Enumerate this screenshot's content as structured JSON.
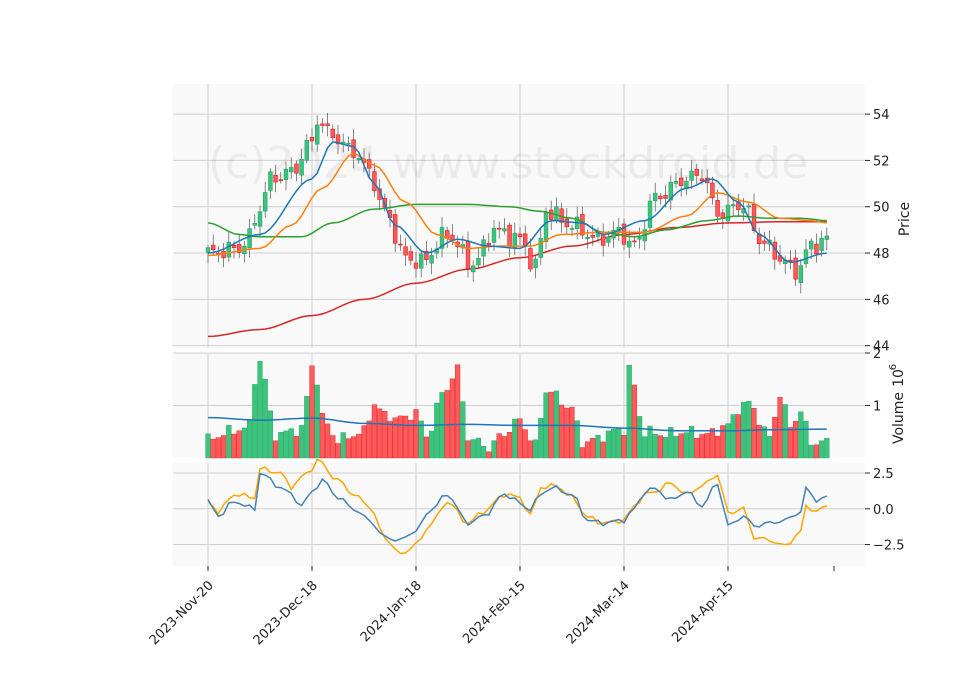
{
  "chart_data": {
    "type": "candlestick",
    "watermark": "(c)2024 www.stockdroid.de",
    "price_panel": {
      "ylabel": "Price",
      "ylim": [
        43.9,
        55.3
      ],
      "yticks": [
        "44",
        "46",
        "48",
        "50",
        "52",
        "54"
      ],
      "yticks_values": [
        44,
        46,
        48,
        50,
        52,
        54
      ]
    },
    "volume_panel": {
      "ylabel": "Volume",
      "exponent_label": "10",
      "exponent_power": "6",
      "ylim": [
        0,
        2.0
      ],
      "yticks": [
        "1",
        "2"
      ],
      "yticks_values": [
        1,
        2
      ]
    },
    "indicator_panel": {
      "ylim": [
        -4.0,
        3.2
      ],
      "yticks": [
        "2.5",
        "0.0",
        "−2.5"
      ],
      "yticks_values": [
        2.5,
        0.0,
        -2.5
      ]
    },
    "x_ticks": [
      "2023-Nov-20",
      "2023-Dec-18",
      "2024-Jan-18",
      "2024-Feb-15",
      "2024-Mar-14",
      "2024-Apr-15"
    ],
    "x_tick_index": [
      0,
      20,
      40,
      60,
      80,
      100
    ],
    "n_sessions": 120,
    "colors": {
      "up": "#26a269",
      "up_fill": "#3cc47c",
      "down": "#e01b24",
      "down_fill": "#ff5a5a",
      "ma_fast": "#1f77b4",
      "ma_mid": "#ff7f0e",
      "ma_slow": "#2ca02c",
      "ma_long": "#d62728",
      "vol_ma": "#1f77b4",
      "ind_a": "#4682b4",
      "ind_b": "#ffa500"
    },
    "close_anchors": [
      [
        0,
        48.0
      ],
      [
        6,
        48.2
      ],
      [
        8,
        48.7
      ],
      [
        10,
        50.0
      ],
      [
        12,
        51.2
      ],
      [
        16,
        51.5
      ],
      [
        20,
        52.8
      ],
      [
        21,
        53.8
      ],
      [
        23,
        53.2
      ],
      [
        28,
        52.4
      ],
      [
        31,
        51.5
      ],
      [
        34,
        49.8
      ],
      [
        38,
        47.8
      ],
      [
        41,
        47.6
      ],
      [
        46,
        48.8
      ],
      [
        51,
        47.5
      ],
      [
        55,
        49.0
      ],
      [
        60,
        48.6
      ],
      [
        63,
        47.4
      ],
      [
        65,
        49.8
      ],
      [
        70,
        49.2
      ],
      [
        75,
        48.6
      ],
      [
        79,
        48.9
      ],
      [
        82,
        48.3
      ],
      [
        86,
        50.4
      ],
      [
        92,
        51.2
      ],
      [
        95,
        51.4
      ],
      [
        98,
        49.7
      ],
      [
        103,
        50.1
      ],
      [
        106,
        48.6
      ],
      [
        110,
        47.8
      ],
      [
        113,
        47.2
      ],
      [
        116,
        48.3
      ],
      [
        119,
        48.6
      ]
    ],
    "ma_anchors": {
      "fast": [
        [
          0,
          48.0
        ],
        [
          10,
          48.8
        ],
        [
          20,
          51.2
        ],
        [
          24,
          52.8
        ],
        [
          28,
          52.6
        ],
        [
          32,
          51.0
        ],
        [
          36,
          49.2
        ],
        [
          42,
          48.0
        ],
        [
          48,
          48.6
        ],
        [
          54,
          48.3
        ],
        [
          60,
          48.2
        ],
        [
          66,
          49.4
        ],
        [
          72,
          49.3
        ],
        [
          76,
          48.8
        ],
        [
          84,
          49.4
        ],
        [
          92,
          50.8
        ],
        [
          97,
          51.2
        ],
        [
          102,
          50.2
        ],
        [
          106,
          48.8
        ],
        [
          112,
          47.6
        ],
        [
          119,
          48.0
        ]
      ],
      "mid": [
        [
          0,
          47.9
        ],
        [
          10,
          48.2
        ],
        [
          16,
          49.2
        ],
        [
          22,
          50.8
        ],
        [
          28,
          52.3
        ],
        [
          32,
          51.8
        ],
        [
          38,
          50.2
        ],
        [
          44,
          48.8
        ],
        [
          50,
          48.2
        ],
        [
          56,
          48.3
        ],
        [
          62,
          48.3
        ],
        [
          68,
          48.8
        ],
        [
          76,
          48.9
        ],
        [
          84,
          48.9
        ],
        [
          92,
          49.6
        ],
        [
          98,
          50.6
        ],
        [
          104,
          50.2
        ],
        [
          110,
          49.5
        ],
        [
          116,
          49.4
        ],
        [
          119,
          49.3
        ]
      ],
      "slow": [
        [
          0,
          49.3
        ],
        [
          6,
          48.8
        ],
        [
          10,
          48.7
        ],
        [
          18,
          48.7
        ],
        [
          24,
          49.3
        ],
        [
          32,
          49.9
        ],
        [
          40,
          50.1
        ],
        [
          50,
          50.1
        ],
        [
          58,
          50.0
        ],
        [
          64,
          49.8
        ],
        [
          70,
          49.5
        ],
        [
          76,
          48.9
        ],
        [
          82,
          48.7
        ],
        [
          88,
          49.0
        ],
        [
          96,
          49.4
        ],
        [
          102,
          49.6
        ],
        [
          108,
          49.5
        ],
        [
          114,
          49.5
        ],
        [
          119,
          49.4
        ]
      ],
      "long": [
        [
          0,
          44.4
        ],
        [
          10,
          44.7
        ],
        [
          20,
          45.3
        ],
        [
          30,
          46.0
        ],
        [
          40,
          46.7
        ],
        [
          50,
          47.3
        ],
        [
          60,
          47.8
        ],
        [
          70,
          48.3
        ],
        [
          80,
          48.8
        ],
        [
          90,
          49.1
        ],
        [
          100,
          49.3
        ],
        [
          110,
          49.35
        ],
        [
          119,
          49.35
        ]
      ]
    },
    "volume_anchors": [
      [
        0,
        0.35
      ],
      [
        4,
        0.5
      ],
      [
        8,
        0.6
      ],
      [
        9,
        1.5
      ],
      [
        10,
        1.85
      ],
      [
        13,
        0.45
      ],
      [
        18,
        0.55
      ],
      [
        20,
        1.75
      ],
      [
        21,
        1.5
      ],
      [
        22,
        0.75
      ],
      [
        25,
        0.35
      ],
      [
        30,
        0.5
      ],
      [
        32,
        1.05
      ],
      [
        34,
        0.8
      ],
      [
        38,
        0.75
      ],
      [
        40,
        0.9
      ],
      [
        42,
        0.4
      ],
      [
        45,
        1.2
      ],
      [
        48,
        1.7
      ],
      [
        50,
        0.4
      ],
      [
        54,
        0.2
      ],
      [
        56,
        0.4
      ],
      [
        60,
        0.72
      ],
      [
        63,
        0.25
      ],
      [
        65,
        1.3
      ],
      [
        70,
        0.95
      ],
      [
        72,
        0.3
      ],
      [
        80,
        0.55
      ],
      [
        81,
        1.68
      ],
      [
        84,
        0.5
      ],
      [
        88,
        0.45
      ],
      [
        92,
        0.5
      ],
      [
        96,
        0.45
      ],
      [
        100,
        0.62
      ],
      [
        102,
        0.95
      ],
      [
        104,
        1.05
      ],
      [
        108,
        0.4
      ],
      [
        110,
        1.22
      ],
      [
        112,
        0.6
      ],
      [
        114,
        0.9
      ],
      [
        116,
        0.3
      ],
      [
        119,
        0.3
      ]
    ],
    "volume_ma_anchors": [
      [
        0,
        0.77
      ],
      [
        10,
        0.72
      ],
      [
        20,
        0.76
      ],
      [
        30,
        0.66
      ],
      [
        40,
        0.62
      ],
      [
        50,
        0.64
      ],
      [
        60,
        0.62
      ],
      [
        70,
        0.62
      ],
      [
        80,
        0.57
      ],
      [
        90,
        0.52
      ],
      [
        100,
        0.52
      ],
      [
        110,
        0.54
      ],
      [
        119,
        0.55
      ]
    ],
    "indicator_a_anchors": [
      [
        0,
        0.5
      ],
      [
        2,
        -0.5
      ],
      [
        5,
        0.5
      ],
      [
        9,
        0.0
      ],
      [
        10,
        2.5
      ],
      [
        14,
        1.5
      ],
      [
        16,
        1.0
      ],
      [
        18,
        0.2
      ],
      [
        20,
        1.2
      ],
      [
        22,
        2.0
      ],
      [
        25,
        0.8
      ],
      [
        28,
        0.0
      ],
      [
        31,
        -0.8
      ],
      [
        34,
        -2.0
      ],
      [
        37,
        -2.2
      ],
      [
        40,
        -1.5
      ],
      [
        43,
        0.0
      ],
      [
        46,
        1.0
      ],
      [
        50,
        -1.0
      ],
      [
        53,
        -0.5
      ],
      [
        57,
        1.0
      ],
      [
        62,
        0.0
      ],
      [
        64,
        1.0
      ],
      [
        66,
        1.5
      ],
      [
        70,
        1.0
      ],
      [
        73,
        -0.8
      ],
      [
        76,
        -1.0
      ],
      [
        80,
        -0.8
      ],
      [
        82,
        0.0
      ],
      [
        84,
        1.2
      ],
      [
        86,
        1.4
      ],
      [
        89,
        0.6
      ],
      [
        92,
        1.2
      ],
      [
        95,
        0.2
      ],
      [
        98,
        1.8
      ],
      [
        100,
        -1.2
      ],
      [
        103,
        -0.5
      ],
      [
        105,
        -1.2
      ],
      [
        108,
        -1.0
      ],
      [
        111,
        -0.8
      ],
      [
        114,
        -0.2
      ],
      [
        115,
        1.4
      ],
      [
        117,
        0.6
      ],
      [
        119,
        0.8
      ]
    ],
    "indicator_b_anchors": [
      [
        0,
        0.5
      ],
      [
        2,
        -0.2
      ],
      [
        5,
        1.0
      ],
      [
        9,
        0.8
      ],
      [
        10,
        2.8
      ],
      [
        14,
        2.5
      ],
      [
        16,
        1.5
      ],
      [
        18,
        2.2
      ],
      [
        20,
        2.8
      ],
      [
        21,
        3.4
      ],
      [
        25,
        2.0
      ],
      [
        28,
        1.0
      ],
      [
        31,
        0.2
      ],
      [
        34,
        -2.0
      ],
      [
        37,
        -3.2
      ],
      [
        40,
        -2.5
      ],
      [
        43,
        -1.0
      ],
      [
        46,
        0.5
      ],
      [
        50,
        -1.0
      ],
      [
        53,
        -0.2
      ],
      [
        57,
        1.0
      ],
      [
        60,
        0.8
      ],
      [
        62,
        -0.5
      ],
      [
        64,
        1.5
      ],
      [
        67,
        1.6
      ],
      [
        70,
        0.8
      ],
      [
        73,
        -0.6
      ],
      [
        76,
        -1.0
      ],
      [
        80,
        -0.8
      ],
      [
        82,
        0.2
      ],
      [
        84,
        1.0
      ],
      [
        86,
        1.2
      ],
      [
        89,
        1.8
      ],
      [
        92,
        1.0
      ],
      [
        95,
        1.6
      ],
      [
        98,
        2.4
      ],
      [
        100,
        -0.3
      ],
      [
        103,
        0.0
      ],
      [
        105,
        -2.0
      ],
      [
        108,
        -2.2
      ],
      [
        111,
        -2.6
      ],
      [
        114,
        -1.6
      ],
      [
        115,
        0.2
      ],
      [
        117,
        -0.2
      ],
      [
        119,
        0.2
      ]
    ]
  }
}
